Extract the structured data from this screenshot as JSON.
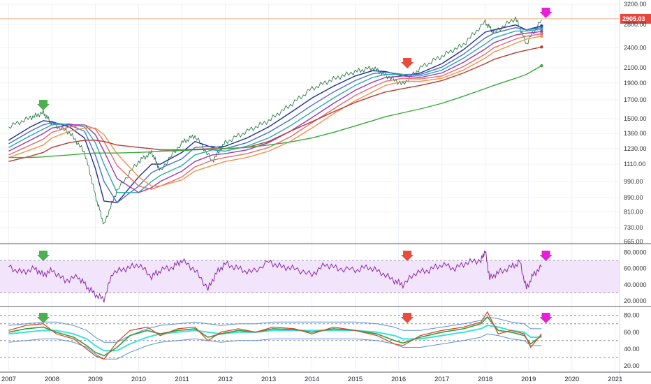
{
  "chart_data": {
    "type": "line",
    "x": [
      2007.0,
      2007.5,
      2007.8,
      2008.0,
      2008.4,
      2008.75,
      2009.0,
      2009.2,
      2009.5,
      2010.0,
      2010.3,
      2010.5,
      2011.0,
      2011.3,
      2011.7,
      2012.0,
      2012.5,
      2013.0,
      2013.5,
      2014.0,
      2014.5,
      2015.0,
      2015.4,
      2015.7,
      2016.1,
      2016.5,
      2017.0,
      2017.5,
      2018.0,
      2018.2,
      2018.7,
      2018.95,
      2019.3
    ],
    "series": [
      {
        "values": [
          1420,
          1510,
          1560,
          1450,
          1370,
          1200,
          900,
          740,
          930,
          1130,
          1200,
          1060,
          1280,
          1340,
          1130,
          1280,
          1380,
          1480,
          1640,
          1830,
          1950,
          2050,
          2100,
          2000,
          1880,
          2100,
          2270,
          2450,
          2840,
          2650,
          2920,
          2460,
          2880
        ]
      },
      {
        "values": [
          1300,
          1420,
          1480,
          1470,
          1420,
          1320,
          1080,
          870,
          860,
          1020,
          1110,
          1110,
          1200,
          1290,
          1240,
          1250,
          1320,
          1420,
          1560,
          1720,
          1860,
          1990,
          2060,
          2050,
          1990,
          2030,
          2160,
          2370,
          2660,
          2700,
          2790,
          2700,
          2770
        ]
      },
      {
        "values": [
          1270,
          1380,
          1440,
          1460,
          1440,
          1380,
          1180,
          990,
          860,
          960,
          1050,
          1080,
          1150,
          1240,
          1250,
          1230,
          1280,
          1370,
          1490,
          1640,
          1790,
          1930,
          2020,
          2040,
          2010,
          2010,
          2110,
          2300,
          2560,
          2640,
          2740,
          2700,
          2740
        ]
      },
      {
        "values": [
          1240,
          1340,
          1400,
          1440,
          1450,
          1420,
          1280,
          1110,
          920,
          920,
          990,
          1030,
          1100,
          1180,
          1220,
          1210,
          1250,
          1320,
          1430,
          1570,
          1720,
          1870,
          1970,
          2010,
          2010,
          1990,
          2070,
          2240,
          2460,
          2560,
          2680,
          2680,
          2710
        ]
      },
      {
        "values": [
          1210,
          1300,
          1360,
          1410,
          1440,
          1440,
          1350,
          1210,
          1010,
          920,
          950,
          990,
          1060,
          1130,
          1180,
          1190,
          1220,
          1280,
          1380,
          1510,
          1660,
          1810,
          1910,
          1970,
          1990,
          1970,
          2030,
          2180,
          2380,
          2480,
          2610,
          2640,
          2670
        ]
      },
      {
        "values": [
          1180,
          1260,
          1310,
          1370,
          1420,
          1440,
          1400,
          1290,
          1100,
          960,
          940,
          960,
          1020,
          1090,
          1140,
          1160,
          1190,
          1240,
          1330,
          1460,
          1600,
          1750,
          1850,
          1920,
          1960,
          1950,
          1990,
          2120,
          2300,
          2400,
          2540,
          2590,
          2630
        ]
      },
      {
        "values": [
          1160,
          1220,
          1260,
          1320,
          1380,
          1410,
          1410,
          1350,
          1190,
          1020,
          960,
          960,
          1000,
          1060,
          1100,
          1130,
          1160,
          1210,
          1290,
          1410,
          1550,
          1690,
          1790,
          1870,
          1920,
          1920,
          1960,
          2070,
          2240,
          2330,
          2470,
          2540,
          2590
        ]
      },
      {
        "values": [
          1130,
          1170,
          1200,
          1240,
          1280,
          1300,
          1300,
          1290,
          1260,
          1240,
          1230,
          1220,
          1220,
          1225,
          1230,
          1230,
          1240,
          1290,
          1380,
          1470,
          1570,
          1670,
          1740,
          1790,
          1830,
          1870,
          1930,
          2030,
          2160,
          2220,
          2320,
          2360,
          2410
        ]
      },
      {
        "values": [
          1160,
          1160,
          1165,
          1170,
          1180,
          1190,
          1195,
          1195,
          1195,
          1200,
          1205,
          1210,
          1215,
          1220,
          1225,
          1230,
          1240,
          1260,
          1285,
          1320,
          1370,
          1430,
          1480,
          1520,
          1560,
          1600,
          1660,
          1740,
          1830,
          1870,
          1960,
          2010,
          2130
        ]
      }
    ],
    "series_colors": [
      "#2a7a4a",
      "#1d2f8a",
      "#4a6fd0",
      "#2aa8a8",
      "#9a38b8",
      "#e66b6b",
      "#f0924a",
      "#b83a32",
      "#3aa83a",
      "#40445a"
    ],
    "yticks": [
      665,
      730,
      810,
      890,
      990,
      1110,
      1230,
      1360,
      1500,
      1700,
      1900,
      2100,
      2400,
      2800,
      3200
    ],
    "ylim": [
      665,
      3200
    ],
    "y_scale": "log",
    "hline_value": "2905.03",
    "hline": 2905.03,
    "xticks": [
      "2007",
      "2008",
      "2009",
      "2010",
      "2011",
      "2012",
      "2013",
      "2014",
      "2015",
      "2016",
      "2017",
      "2018",
      "2019",
      "2020",
      "2021"
    ],
    "xlim": [
      2006.8,
      2021.1
    ],
    "markers": [
      {
        "x": 2007.8,
        "color": "#4caf50",
        "type": "down-arrow"
      },
      {
        "x": 2016.2,
        "color": "#e74c3c",
        "type": "down-arrow"
      },
      {
        "x": 2019.4,
        "color": "#e91ed8",
        "type": "down-arrow"
      }
    ],
    "rsi": {
      "yticks": [
        "80.0000",
        "60.0000",
        "40.0000",
        "20.0000"
      ],
      "ylim": [
        15,
        88
      ],
      "band": [
        30,
        70
      ],
      "x": [
        2007.0,
        2007.3,
        2007.6,
        2007.8,
        2008.0,
        2008.3,
        2008.6,
        2008.8,
        2009.0,
        2009.2,
        2009.4,
        2009.7,
        2010.0,
        2010.3,
        2010.5,
        2010.8,
        2011.0,
        2011.3,
        2011.6,
        2011.8,
        2012.0,
        2012.3,
        2012.6,
        2013.0,
        2013.3,
        2013.6,
        2014.0,
        2014.3,
        2014.6,
        2015.0,
        2015.3,
        2015.6,
        2015.9,
        2016.1,
        2016.4,
        2016.7,
        2017.0,
        2017.3,
        2017.6,
        2017.9,
        2018.0,
        2018.1,
        2018.3,
        2018.6,
        2018.8,
        2018.95,
        2019.1,
        2019.3
      ],
      "values": [
        62,
        55,
        60,
        52,
        58,
        45,
        50,
        38,
        28,
        22,
        55,
        60,
        65,
        50,
        58,
        62,
        70,
        58,
        35,
        55,
        66,
        60,
        55,
        68,
        62,
        60,
        52,
        65,
        60,
        58,
        62,
        55,
        45,
        40,
        55,
        58,
        65,
        60,
        68,
        70,
        82,
        48,
        55,
        62,
        68,
        35,
        52,
        62
      ]
    },
    "osc": {
      "yticks": [
        "80.00",
        "60.00",
        "40.00",
        "20.00"
      ],
      "ylim": [
        15,
        88
      ],
      "x": [
        2007.0,
        2007.4,
        2007.8,
        2008.1,
        2008.5,
        2008.8,
        2009.0,
        2009.2,
        2009.5,
        2009.8,
        2010.2,
        2010.5,
        2010.9,
        2011.3,
        2011.6,
        2011.9,
        2012.3,
        2012.7,
        2013.1,
        2013.6,
        2014.0,
        2014.5,
        2015.0,
        2015.5,
        2015.9,
        2016.1,
        2016.5,
        2017.0,
        2017.5,
        2017.9,
        2018.05,
        2018.3,
        2018.6,
        2018.9,
        2019.05,
        2019.3
      ],
      "fast": [
        62,
        68,
        70,
        58,
        52,
        40,
        32,
        28,
        48,
        62,
        66,
        56,
        64,
        66,
        50,
        60,
        64,
        60,
        66,
        64,
        58,
        66,
        62,
        56,
        46,
        44,
        56,
        62,
        66,
        72,
        84,
        58,
        62,
        58,
        42,
        58
      ],
      "slow": [
        60,
        64,
        66,
        60,
        54,
        44,
        36,
        32,
        42,
        56,
        62,
        58,
        62,
        64,
        54,
        58,
        62,
        60,
        64,
        63,
        60,
        64,
        62,
        58,
        50,
        47,
        54,
        60,
        64,
        70,
        78,
        62,
        60,
        56,
        46,
        56
      ],
      "mid": [
        58,
        60,
        62,
        62,
        58,
        52,
        44,
        38,
        38,
        46,
        54,
        58,
        60,
        62,
        60,
        58,
        60,
        60,
        62,
        62,
        62,
        62,
        62,
        60,
        56,
        52,
        52,
        56,
        60,
        64,
        68,
        66,
        62,
        60,
        54,
        54
      ]
    }
  }
}
